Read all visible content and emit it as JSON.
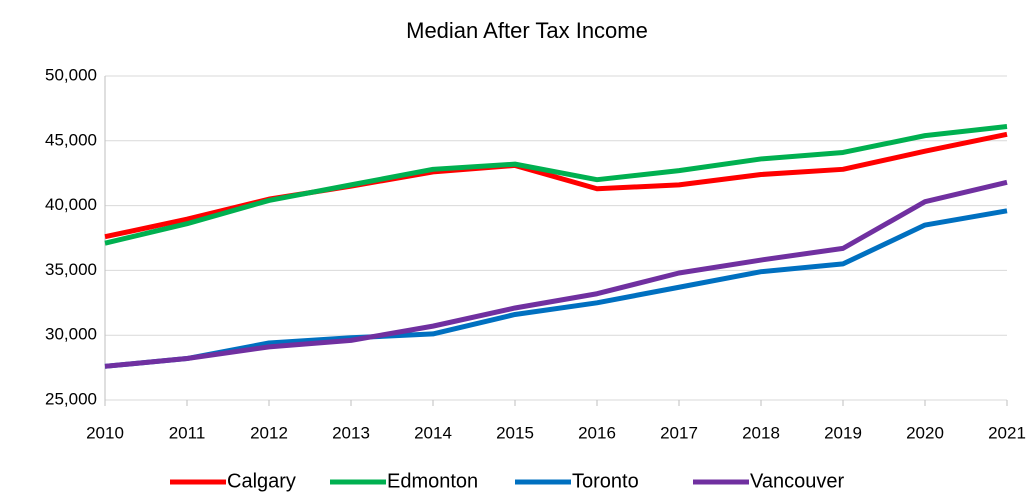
{
  "chart_data": {
    "type": "line",
    "title": "Median After Tax Income",
    "x": [
      2010,
      2011,
      2012,
      2013,
      2014,
      2015,
      2016,
      2017,
      2018,
      2019,
      2020,
      2021
    ],
    "series": [
      {
        "name": "Calgary",
        "color": "#ff0000",
        "values": [
          37600,
          38950,
          40500,
          41500,
          42600,
          43100,
          41300,
          41600,
          42400,
          42800,
          44200,
          45500
        ]
      },
      {
        "name": "Edmonton",
        "color": "#00b050",
        "values": [
          37100,
          38600,
          40400,
          41600,
          42800,
          43200,
          42000,
          42700,
          43600,
          44100,
          45400,
          46100
        ]
      },
      {
        "name": "Toronto",
        "color": "#0070c0",
        "values": [
          27600,
          28200,
          29400,
          29800,
          30100,
          31600,
          32500,
          33700,
          34900,
          35500,
          38500,
          39600
        ]
      },
      {
        "name": "Vancouver",
        "color": "#7030a0",
        "values": [
          27600,
          28200,
          29100,
          29600,
          30700,
          32100,
          33200,
          34800,
          35800,
          36700,
          40300,
          41800
        ]
      }
    ],
    "xlim": [
      2010,
      2021
    ],
    "xticks": [
      2010,
      2011,
      2012,
      2013,
      2014,
      2015,
      2016,
      2017,
      2018,
      2019,
      2020,
      2021
    ],
    "ylim": [
      25000,
      50000
    ],
    "yticks": [
      {
        "value": 25000,
        "label": "25,000"
      },
      {
        "value": 30000,
        "label": "30,000"
      },
      {
        "value": 35000,
        "label": "35,000"
      },
      {
        "value": 40000,
        "label": "40,000"
      },
      {
        "value": 45000,
        "label": "45,000"
      },
      {
        "value": 50000,
        "label": "50,000"
      }
    ],
    "grid": true,
    "legend": "bottom"
  }
}
